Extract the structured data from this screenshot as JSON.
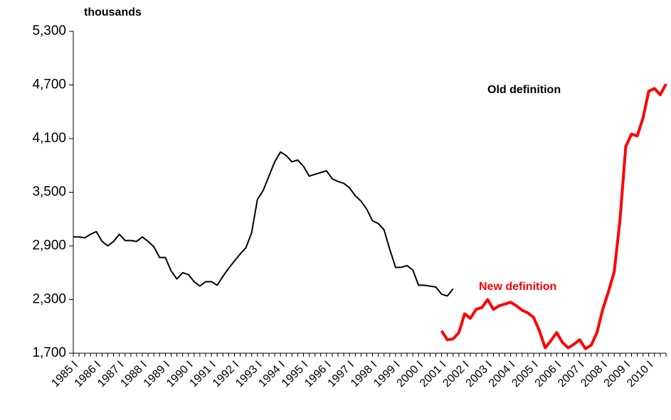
{
  "chart_data": {
    "type": "line",
    "y_axis_label": "thousands",
    "annotations": [
      {
        "text": "Old definition",
        "color": "#000000"
      },
      {
        "text": "New definition",
        "color": "#ff0000"
      }
    ],
    "categories": [
      "1985 I",
      null,
      null,
      null,
      "1986 I",
      null,
      null,
      null,
      "1987 I",
      null,
      null,
      null,
      "1988 I",
      null,
      null,
      null,
      "1989 I",
      null,
      null,
      null,
      "1990 I",
      null,
      null,
      null,
      "1991 I",
      null,
      null,
      null,
      "1992 I",
      null,
      null,
      null,
      "1993 I",
      null,
      null,
      null,
      "1994 I",
      null,
      null,
      null,
      "1995 I",
      null,
      null,
      null,
      "1996 I",
      null,
      null,
      null,
      "1997 I",
      null,
      null,
      null,
      "1998 I",
      null,
      null,
      null,
      "1999 I",
      null,
      null,
      null,
      "2000 I",
      null,
      null,
      null,
      "2001 I",
      null,
      null,
      null,
      "2002 I",
      null,
      null,
      null,
      "2003 I",
      null,
      null,
      null,
      "2004 I",
      null,
      null,
      null,
      "2005 I",
      null,
      null,
      null,
      "2006 I",
      null,
      null,
      null,
      "2007 I",
      null,
      null,
      null,
      "2008 I",
      null,
      null,
      null,
      "2009 I",
      null,
      null,
      null,
      "2010 I",
      null,
      null,
      null
    ],
    "series": [
      {
        "name": "Old definition",
        "color": "#000000",
        "width": 2,
        "values": [
          3000,
          3000,
          2990,
          3030,
          3060,
          2950,
          2900,
          2950,
          3030,
          2960,
          2960,
          2950,
          3000,
          2950,
          2890,
          2770,
          2770,
          2620,
          2530,
          2600,
          2580,
          2500,
          2450,
          2500,
          2500,
          2460,
          2560,
          2650,
          2730,
          2810,
          2880,
          3050,
          3420,
          3520,
          3680,
          3840,
          3950,
          3910,
          3840,
          3860,
          3790,
          3680,
          3700,
          3720,
          3740,
          3650,
          3620,
          3600,
          3550,
          3460,
          3400,
          3310,
          3180,
          3150,
          3080,
          2860,
          2660,
          2660,
          2680,
          2630,
          2460,
          2460,
          2450,
          2440,
          2360,
          2340,
          2420,
          null,
          null,
          null,
          null,
          null,
          null,
          null,
          null,
          null,
          null,
          null,
          null,
          null,
          null,
          null,
          null,
          null,
          null,
          null,
          null,
          null,
          null,
          null,
          null,
          null,
          null,
          null,
          null,
          null,
          null,
          null,
          null,
          null,
          null,
          null,
          null,
          null
        ]
      },
      {
        "name": "New definition",
        "color": "#ff0000",
        "width": 4,
        "values": [
          null,
          null,
          null,
          null,
          null,
          null,
          null,
          null,
          null,
          null,
          null,
          null,
          null,
          null,
          null,
          null,
          null,
          null,
          null,
          null,
          null,
          null,
          null,
          null,
          null,
          null,
          null,
          null,
          null,
          null,
          null,
          null,
          null,
          null,
          null,
          null,
          null,
          null,
          null,
          null,
          null,
          null,
          null,
          null,
          null,
          null,
          null,
          null,
          null,
          null,
          null,
          null,
          null,
          null,
          null,
          null,
          null,
          null,
          null,
          null,
          null,
          null,
          null,
          null,
          1950,
          1850,
          1860,
          1930,
          2140,
          2090,
          2190,
          2210,
          2300,
          2190,
          2230,
          2250,
          2270,
          2230,
          2180,
          2150,
          2100,
          1950,
          1760,
          1840,
          1930,
          1820,
          1760,
          1800,
          1850,
          1750,
          1790,
          1930,
          2190,
          2390,
          2610,
          3190,
          4010,
          4150,
          4130,
          4330,
          4630,
          4660,
          4590,
          4710
        ]
      }
    ],
    "ylim": [
      1700,
      5300
    ],
    "yticks": [
      {
        "value": 1700,
        "label": "1,700"
      },
      {
        "value": 2300,
        "label": "2,300"
      },
      {
        "value": 2900,
        "label": "2,900"
      },
      {
        "value": 3500,
        "label": "3,500"
      },
      {
        "value": 4100,
        "label": "4,100"
      },
      {
        "value": 4700,
        "label": "4,700"
      },
      {
        "value": 5300,
        "label": "5,300"
      }
    ],
    "grid": false
  }
}
